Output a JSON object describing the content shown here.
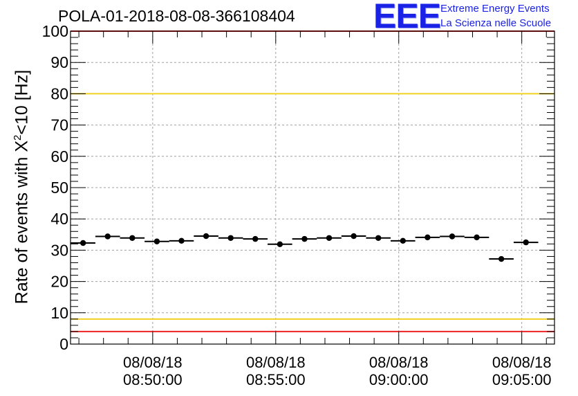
{
  "chart_data": {
    "type": "scatter",
    "title": "POLA-01-2018-08-08-366108404",
    "ylabel_prefix": "Rate of events with X",
    "ylabel_sup": "2",
    "ylabel_suffix": "<10 [Hz]",
    "xlabel": "",
    "ylim": [
      0,
      100
    ],
    "y_ticks": [
      "0",
      "10",
      "20",
      "30",
      "40",
      "50",
      "60",
      "70",
      "80",
      "90",
      "100"
    ],
    "x_ticks": [
      {
        "t": 50,
        "date": "08/08/18",
        "time": "08:50:00"
      },
      {
        "t": 55,
        "date": "08/08/18",
        "time": "08:55:00"
      },
      {
        "t": 60,
        "date": "08/08/18",
        "time": "09:00:00"
      },
      {
        "t": 65,
        "date": "08/08/18",
        "time": "09:05:00"
      }
    ],
    "xlim": [
      46.66,
      66.33
    ],
    "series": [
      {
        "style": "points-with-x-error",
        "points": [
          {
            "t": 47.17,
            "y": 32.3
          },
          {
            "t": 48.17,
            "y": 34.4
          },
          {
            "t": 49.17,
            "y": 33.9
          },
          {
            "t": 50.17,
            "y": 32.8
          },
          {
            "t": 51.17,
            "y": 33.0
          },
          {
            "t": 52.17,
            "y": 34.5
          },
          {
            "t": 53.17,
            "y": 33.9
          },
          {
            "t": 54.17,
            "y": 33.6
          },
          {
            "t": 55.17,
            "y": 31.9
          },
          {
            "t": 56.17,
            "y": 33.6
          },
          {
            "t": 57.17,
            "y": 33.9
          },
          {
            "t": 58.17,
            "y": 34.5
          },
          {
            "t": 59.17,
            "y": 33.9
          },
          {
            "t": 60.17,
            "y": 33.0
          },
          {
            "t": 61.17,
            "y": 34.1
          },
          {
            "t": 62.17,
            "y": 34.4
          },
          {
            "t": 63.17,
            "y": 34.1
          },
          {
            "t": 64.17,
            "y": 27.2
          },
          {
            "t": 65.17,
            "y": 32.5
          }
        ],
        "half_width": 0.5
      }
    ],
    "reference_lines": [
      {
        "y": 80,
        "color": "#f2d021"
      },
      {
        "y": 8,
        "color": "#f2d021"
      },
      {
        "y": 100,
        "color": "#ee2222"
      },
      {
        "y": 4,
        "color": "#ee2222"
      }
    ],
    "grid": true
  },
  "logo": {
    "text": "EEE",
    "line1": "Extreme Energy Events",
    "line2": "La Scienza nelle Scuole",
    "color": "#1a22e6"
  }
}
